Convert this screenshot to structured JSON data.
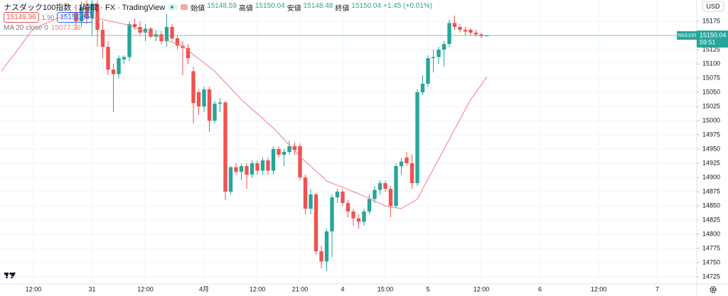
{
  "chart_data": {
    "type": "candlestick",
    "title": "ナスダック100指数 · 1時間 · FX · TradingView",
    "ohlc_labels": [
      "始値",
      "高値",
      "安値",
      "終値"
    ],
    "change": "+1.45 (+0.01%)",
    "bid": 15149.96,
    "spread": "1.90",
    "ask": 15151.86,
    "currency": "USD",
    "symbol": "NAS100",
    "countdown": "59:51",
    "up_color": "#26a69a",
    "down_color": "#ef5350",
    "grid": true,
    "ylim": [
      14712.5,
      15212.5
    ],
    "yticks": [
      14725,
      14750,
      14775,
      14800,
      14825,
      14850,
      14875,
      14900,
      14925,
      14950,
      14975,
      15000,
      15025,
      15050,
      15075,
      15100,
      15125,
      15150,
      15175
    ],
    "x": [
      null,
      null,
      null,
      null,
      null,
      null,
      "12:00",
      null,
      null,
      null,
      null,
      null,
      null,
      null,
      null,
      null,
      null,
      "31",
      null,
      null,
      null,
      null,
      null,
      null,
      null,
      null,
      null,
      "12:00",
      null,
      null,
      null,
      null,
      null,
      null,
      null,
      null,
      null,
      null,
      "4月",
      null,
      null,
      null,
      null,
      null,
      null,
      null,
      null,
      null,
      "12:00",
      null,
      null,
      null,
      null,
      null,
      null,
      null,
      "21:00",
      null,
      null,
      null,
      null,
      null,
      null,
      null,
      "4",
      null,
      null,
      null,
      null,
      null,
      null,
      null,
      "15:00",
      null,
      null,
      null,
      null,
      null,
      null,
      null,
      "5",
      null,
      null,
      null,
      null,
      null,
      null,
      null,
      null,
      null,
      "12:00",
      null,
      null,
      null,
      null,
      null,
      null,
      null,
      null,
      null,
      null,
      "6",
      null,
      null,
      null,
      null,
      null,
      null,
      null,
      null,
      null,
      null,
      "12:00",
      null,
      null,
      null,
      null,
      null,
      null,
      null,
      null,
      null,
      null,
      "7",
      null,
      null,
      null,
      null,
      null,
      null,
      null
    ],
    "open": [
      null,
      null,
      null,
      null,
      null,
      null,
      null,
      null,
      null,
      null,
      null,
      null,
      null,
      null,
      15190,
      15175,
      15200,
      15180,
      15205,
      15160,
      15130,
      15090,
      15082,
      15108,
      15112,
      15170,
      15165,
      15155,
      15162,
      15148,
      15152,
      15140,
      15165,
      15145,
      15132,
      15128,
      15087,
      15050,
      15025,
      15055,
      15000,
      15030,
      15032,
      14875,
      14918,
      14910,
      14920,
      14905,
      14925,
      14912,
      14930,
      14912,
      14950,
      14940,
      14945,
      14955,
      14955,
      14900,
      14845,
      14870,
      14770,
      14752,
      14805,
      14865,
      14875,
      14855,
      14840,
      14828,
      14822,
      14840,
      14862,
      14878,
      14890,
      14880,
      14850,
      14920,
      14935,
      14925,
      14890,
      15050,
      15065,
      15110,
      15112,
      15125,
      15135,
      15172,
      15165,
      15160,
      15160,
      15155,
      15152,
      15148.59,
      null,
      null,
      null,
      null,
      null,
      null,
      null,
      null,
      null,
      null,
      null,
      null,
      null,
      null,
      null,
      null,
      null,
      null,
      null,
      null,
      null,
      null,
      null,
      null,
      null,
      null,
      null,
      null,
      null,
      null,
      null,
      null,
      null,
      null,
      null,
      null,
      null,
      null,
      null
    ],
    "high": [
      null,
      null,
      null,
      null,
      null,
      null,
      null,
      null,
      null,
      null,
      null,
      null,
      null,
      null,
      15205,
      15210,
      15212,
      15212,
      15212,
      15175,
      15140,
      15100,
      15115,
      15115,
      15175,
      15180,
      15175,
      15170,
      15165,
      15160,
      15158,
      15188,
      15170,
      15150,
      15140,
      15135,
      15095,
      15055,
      15060,
      15060,
      15035,
      15040,
      15035,
      14920,
      14925,
      14925,
      14925,
      14930,
      14930,
      14935,
      14935,
      14955,
      14955,
      14950,
      14965,
      14962,
      14960,
      14905,
      14880,
      14872,
      14780,
      14810,
      14870,
      14880,
      14880,
      14860,
      14845,
      14835,
      14845,
      14870,
      14885,
      14895,
      14895,
      14885,
      14925,
      14935,
      14945,
      14940,
      15055,
      15080,
      15115,
      15125,
      15130,
      15140,
      15178,
      15185,
      15170,
      15165,
      15163,
      15160,
      15155,
      15150.04,
      null,
      null,
      null,
      null,
      null,
      null,
      null,
      null,
      null,
      null,
      null,
      null,
      null,
      null,
      null,
      null,
      null,
      null,
      null,
      null,
      null,
      null,
      null,
      null,
      null,
      null,
      null,
      null,
      null,
      null,
      null,
      null,
      null,
      null,
      null,
      null,
      null,
      null,
      null
    ],
    "low": [
      null,
      null,
      null,
      null,
      null,
      null,
      null,
      null,
      null,
      null,
      null,
      null,
      null,
      null,
      15160,
      15165,
      15170,
      15150,
      15130,
      15110,
      15080,
      15015,
      15075,
      15100,
      15105,
      15160,
      15150,
      15140,
      15145,
      15140,
      15135,
      15130,
      15140,
      15125,
      15080,
      15100,
      14995,
      15010,
      15015,
      14980,
      14995,
      15015,
      14860,
      14870,
      14905,
      14895,
      14880,
      14900,
      14905,
      14905,
      14905,
      14905,
      14935,
      14920,
      14940,
      14940,
      14895,
      14835,
      14835,
      14765,
      14740,
      14735,
      14760,
      14855,
      14850,
      14830,
      14815,
      14810,
      14815,
      14835,
      14855,
      14870,
      14875,
      14830,
      14845,
      14905,
      14920,
      14880,
      14885,
      15045,
      15060,
      15085,
      15100,
      15095,
      15130,
      15160,
      15155,
      15150,
      15150,
      15148,
      15145,
      15148.48,
      null,
      null,
      null,
      null,
      null,
      null,
      null,
      null,
      null,
      null,
      null,
      null,
      null,
      null,
      null,
      null,
      null,
      null,
      null,
      null,
      null,
      null,
      null,
      null,
      null,
      null,
      null,
      null,
      null,
      null,
      null,
      null,
      null,
      null,
      null,
      null,
      null,
      null,
      null
    ],
    "close": [
      null,
      null,
      null,
      null,
      null,
      null,
      null,
      null,
      null,
      null,
      null,
      null,
      null,
      null,
      15175,
      15200,
      15180,
      15205,
      15160,
      15130,
      15090,
      15082,
      15110,
      15112,
      15170,
      15165,
      15155,
      15162,
      15148,
      15152,
      15140,
      15165,
      15145,
      15132,
      15128,
      15110,
      15031,
      15025,
      15055,
      15000,
      15030,
      15032,
      14875,
      14918,
      14910,
      14920,
      14905,
      14925,
      14912,
      14930,
      14912,
      14950,
      14940,
      14945,
      14955,
      14948,
      14900,
      14845,
      14870,
      14770,
      14752,
      14805,
      14865,
      14875,
      14855,
      14840,
      14828,
      14822,
      14840,
      14862,
      14878,
      14890,
      14880,
      14850,
      14920,
      14928,
      14925,
      14890,
      15050,
      15065,
      15110,
      15112,
      15125,
      15135,
      15172,
      15165,
      15160,
      15157,
      15155,
      15152,
      15149,
      15150.04,
      null,
      null,
      null,
      null,
      null,
      null,
      null,
      null,
      null,
      null,
      null,
      null,
      null,
      null,
      null,
      null,
      null,
      null,
      null,
      null,
      null,
      null,
      null,
      null,
      null,
      null,
      null,
      null,
      null,
      null,
      null,
      null,
      null,
      null,
      null,
      null,
      null,
      null,
      null
    ],
    "ma": {
      "label": "MA 20 close 0",
      "color": "#f77c80",
      "values": [
        15087,
        15100,
        15112,
        15124,
        15137,
        15150,
        15162,
        15166,
        15170,
        15174,
        15178,
        15182,
        15186,
        15190,
        15188,
        15186,
        15184,
        15182,
        15180,
        15178,
        15176,
        15174,
        15172,
        15170,
        15168,
        15164,
        15160,
        15157,
        15153,
        15149,
        15146,
        15142,
        15138,
        15135,
        15131,
        15124,
        15116,
        15109,
        15102,
        15094,
        15087,
        15077,
        15067,
        15057,
        15047,
        15037,
        15029,
        15020,
        15012,
        15004,
        14995,
        14987,
        14977,
        14967,
        14957,
        14947,
        14937,
        14928,
        14920,
        14911,
        14903,
        14894,
        14890,
        14886,
        14883,
        14879,
        14875,
        14871,
        14867,
        14863,
        14858,
        14854,
        14850,
        14848,
        14847,
        14845,
        14851,
        14856,
        14862,
        14880,
        14897,
        14915,
        14932,
        14950,
        14967,
        14985,
        15002,
        15020,
        15037,
        15050,
        15063,
        15077.26,
        null,
        null,
        null,
        null,
        null,
        null,
        null,
        null,
        null,
        null,
        null,
        null,
        null,
        null,
        null,
        null,
        null,
        null,
        null,
        null,
        null,
        null,
        null,
        null,
        null,
        null,
        null,
        null,
        null,
        null,
        null,
        null,
        null,
        null,
        null,
        null,
        null,
        null,
        null
      ]
    }
  }
}
